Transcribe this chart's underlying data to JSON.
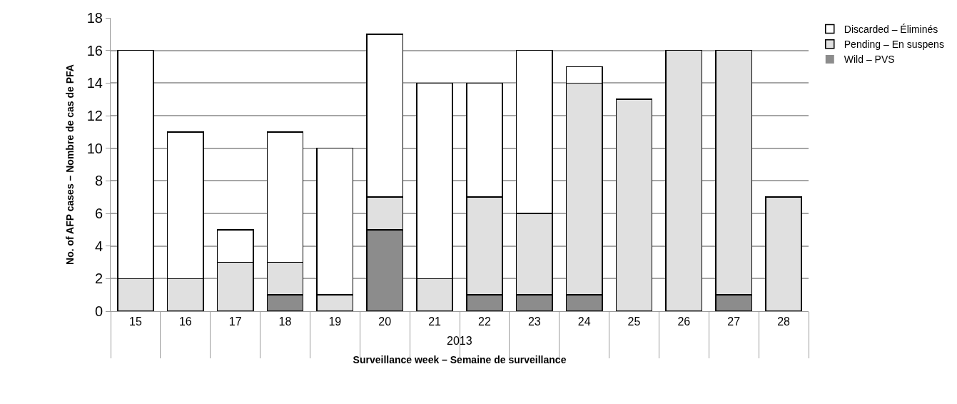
{
  "chart_data": {
    "type": "bar",
    "stacked": true,
    "ylabel": "No. of AFP cases – Nombre de cas de PFA",
    "xlabel": "Surveillance week – Semaine de surveillance",
    "categories": [
      "15",
      "16",
      "17",
      "18",
      "19",
      "20",
      "21",
      "22",
      "23",
      "24",
      "25",
      "26",
      "27",
      "28"
    ],
    "series": [
      {
        "name": "Wild – PVS",
        "color": "#8c8c8c",
        "values": [
          0,
          0,
          0,
          1,
          0,
          5,
          0,
          1,
          1,
          1,
          0,
          0,
          1,
          0
        ]
      },
      {
        "name": "Pending – En suspens",
        "color": "#e0e0e0",
        "values": [
          2,
          2,
          3,
          2,
          1,
          2,
          2,
          6,
          5,
          13,
          13,
          16,
          15,
          7
        ]
      },
      {
        "name": "Discarded – Éliminés",
        "color": "#ffffff",
        "values": [
          14,
          9,
          2,
          8,
          9,
          10,
          12,
          7,
          10,
          1,
          0,
          0,
          0,
          0
        ]
      }
    ],
    "ylim": [
      0,
      18
    ],
    "yticks": [
      0,
      2,
      4,
      6,
      8,
      10,
      12,
      14,
      16,
      18
    ],
    "grid": "y",
    "legend": "top right",
    "annotations": [
      "2013"
    ]
  }
}
